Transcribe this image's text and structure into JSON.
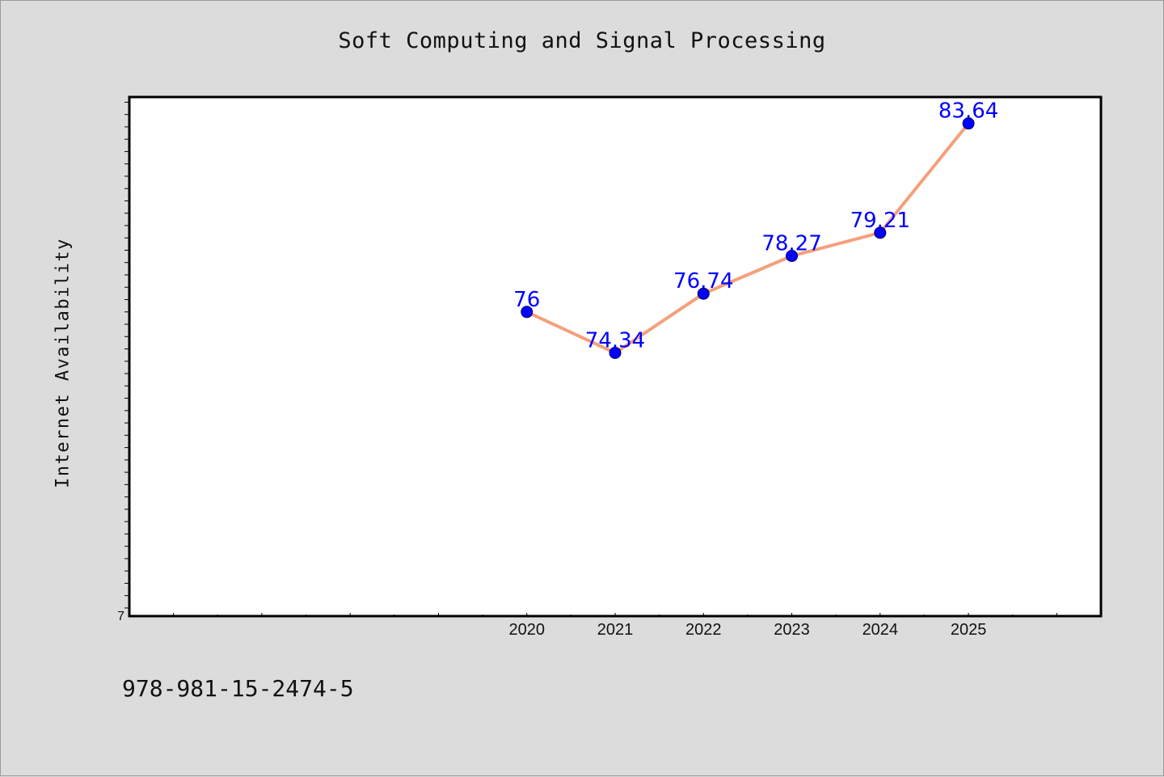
{
  "chart_data": {
    "type": "line",
    "title": "Soft Computing and Signal Processing",
    "ylabel": "Internet Availability",
    "xlabel": "",
    "x": [
      "2020",
      "2021",
      "2022",
      "2023",
      "2024",
      "2025"
    ],
    "series": [
      {
        "values": [
          76,
          74.34,
          76.74,
          78.27,
          79.21,
          83.64
        ]
      }
    ],
    "data_labels": [
      "76",
      "74.34",
      "76.74",
      "78.27",
      "79.21",
      "83.64"
    ],
    "y_tick_labels": [
      "7"
    ],
    "ylim": [
      63.67,
      84.71
    ],
    "x_range": [
      2015.5,
      2026.5
    ],
    "grid": false,
    "line_color": "#f4a07c",
    "marker_color": "#0000ff",
    "label_color": "#0000ff"
  },
  "footnote": "978-981-15-2474-5"
}
